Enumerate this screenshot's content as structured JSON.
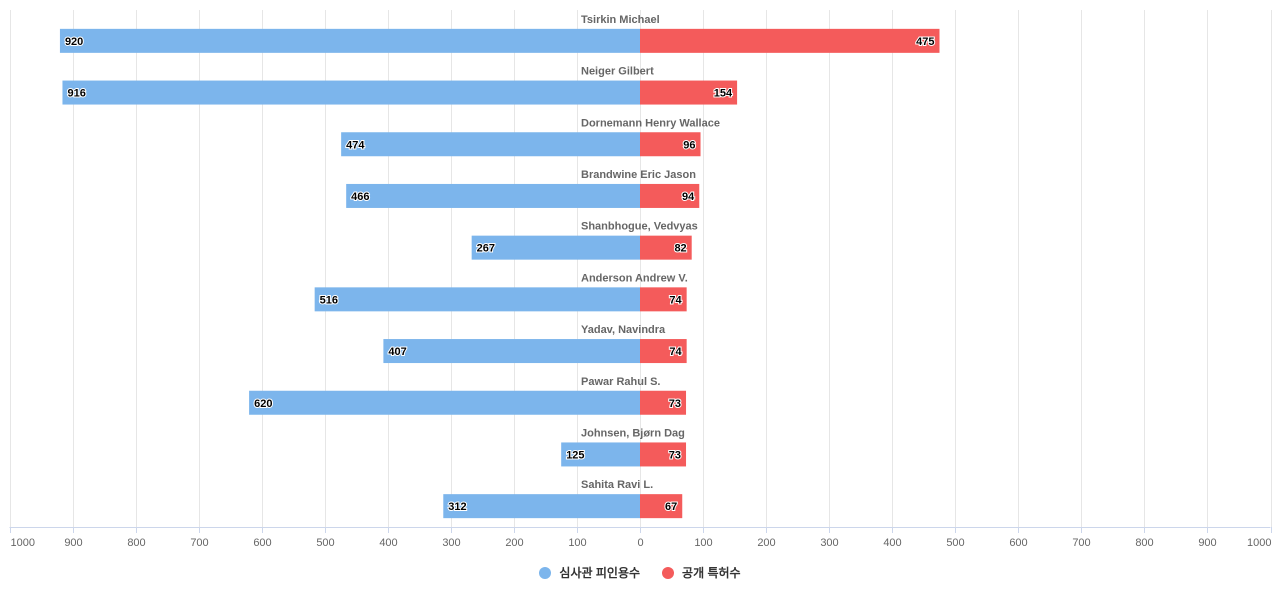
{
  "chart_data": {
    "type": "bar",
    "orientation": "horizontal-diverging",
    "title": "",
    "xlabel": "",
    "ylabel": "",
    "xlim": [
      -1000,
      1000
    ],
    "grid": true,
    "legend_position": "bottom-center",
    "x_ticks": [
      "1000",
      "900",
      "800",
      "700",
      "600",
      "500",
      "400",
      "300",
      "200",
      "100",
      "0",
      "100",
      "200",
      "300",
      "400",
      "500",
      "600",
      "700",
      "800",
      "900",
      "1000"
    ],
    "categories": [
      "Tsirkin Michael",
      "Neiger Gilbert",
      "Dornemann Henry Wallace",
      "Brandwine Eric Jason",
      "Shanbhogue, Vedvyas",
      "Anderson Andrew V.",
      "Yadav, Navindra",
      "Pawar Rahul S.",
      "Johnsen, Bjørn Dag",
      "Sahita Ravi L."
    ],
    "series": [
      {
        "name": "심사관 피인용수",
        "side": "left",
        "color": "#7cb5ec",
        "values": [
          920,
          916,
          474,
          466,
          267,
          516,
          407,
          620,
          125,
          312
        ]
      },
      {
        "name": "공개 특허수",
        "side": "right",
        "color": "#f45b5b",
        "values": [
          475,
          154,
          96,
          94,
          82,
          74,
          74,
          73,
          73,
          67
        ]
      }
    ]
  }
}
